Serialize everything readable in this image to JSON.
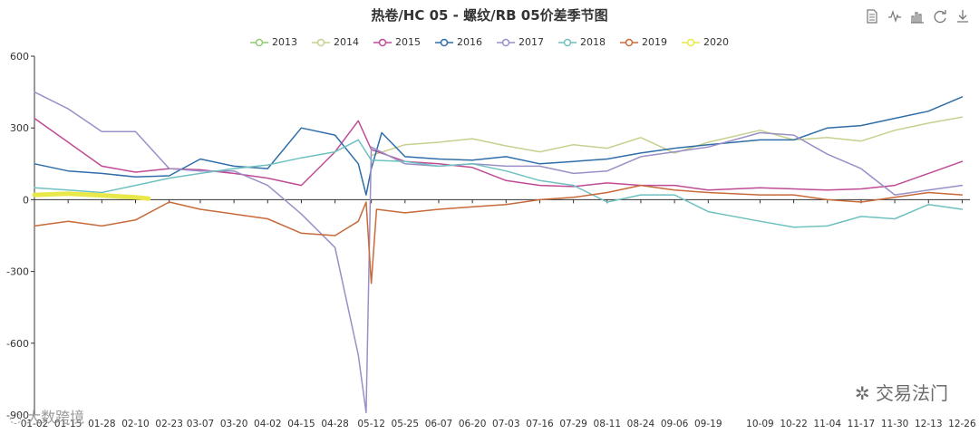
{
  "title": "热卷/HC 05 - 螺纹/RB 05价差季节图",
  "toolbar": [
    "data-view-icon",
    "line-chart-icon",
    "bar-chart-icon",
    "restore-icon",
    "download-icon"
  ],
  "watermarks": {
    "corner_logo": "交易法门",
    "corner_left": "大数跨境"
  },
  "chart_data": {
    "type": "line",
    "title": "热卷/HC 05 - 螺纹/RB 05价差季节图",
    "xlabel": "",
    "ylabel": "",
    "ylim": [
      -900,
      600
    ],
    "yticks": [
      600,
      300,
      0,
      -300,
      -600,
      -900
    ],
    "ytick_labels": [
      "600",
      "300",
      "0",
      "-300",
      "-600",
      "-900"
    ],
    "x_range": [
      "01-02",
      "12-29"
    ],
    "xtick_labels": [
      "01-02",
      "01-15",
      "01-28",
      "02-10",
      "02-23",
      "03-07",
      "03-20",
      "04-02",
      "04-15",
      "04-28",
      "05-12",
      "05-25",
      "06-07",
      "06-20",
      "07-03",
      "07-16",
      "07-29",
      "08-11",
      "08-24",
      "09-06",
      "09-19",
      "10-09",
      "10-22",
      "11-04",
      "11-17",
      "11-30",
      "12-13",
      "12-26"
    ],
    "legend_position": "top-center",
    "grid": false,
    "series": [
      {
        "name": "2013",
        "color": "#91cc75",
        "points": []
      },
      {
        "name": "2014",
        "color": "#c7d08d",
        "points": [
          [
            "05-12",
            185
          ],
          [
            "05-25",
            230
          ],
          [
            "06-07",
            240
          ],
          [
            "06-20",
            255
          ],
          [
            "07-03",
            225
          ],
          [
            "07-16",
            200
          ],
          [
            "07-29",
            230
          ],
          [
            "08-11",
            215
          ],
          [
            "08-24",
            260
          ],
          [
            "09-06",
            195
          ],
          [
            "09-19",
            240
          ],
          [
            "10-09",
            290
          ],
          [
            "10-22",
            250
          ],
          [
            "11-04",
            260
          ],
          [
            "11-17",
            245
          ],
          [
            "11-30",
            290
          ],
          [
            "12-13",
            320
          ],
          [
            "12-26",
            345
          ]
        ]
      },
      {
        "name": "2015",
        "color": "#c04b95",
        "points": [
          [
            "01-02",
            340
          ],
          [
            "01-15",
            240
          ],
          [
            "01-28",
            140
          ],
          [
            "02-10",
            115
          ],
          [
            "02-23",
            130
          ],
          [
            "03-07",
            125
          ],
          [
            "03-20",
            110
          ],
          [
            "04-02",
            90
          ],
          [
            "04-15",
            60
          ],
          [
            "04-28",
            200
          ],
          [
            "05-07",
            330
          ],
          [
            "05-12",
            210
          ],
          [
            "05-25",
            160
          ],
          [
            "06-07",
            150
          ],
          [
            "06-20",
            135
          ],
          [
            "07-03",
            80
          ],
          [
            "07-16",
            60
          ],
          [
            "07-29",
            55
          ],
          [
            "08-11",
            70
          ],
          [
            "08-24",
            60
          ],
          [
            "09-06",
            60
          ],
          [
            "09-19",
            40
          ],
          [
            "10-09",
            50
          ],
          [
            "10-22",
            45
          ],
          [
            "11-04",
            40
          ],
          [
            "11-17",
            45
          ],
          [
            "11-30",
            60
          ],
          [
            "12-13",
            110
          ],
          [
            "12-26",
            160
          ]
        ]
      },
      {
        "name": "2016",
        "color": "#2f6ea8",
        "points": [
          [
            "01-02",
            150
          ],
          [
            "01-15",
            120
          ],
          [
            "01-28",
            110
          ],
          [
            "02-10",
            95
          ],
          [
            "02-23",
            100
          ],
          [
            "03-07",
            170
          ],
          [
            "03-20",
            140
          ],
          [
            "04-02",
            130
          ],
          [
            "04-15",
            300
          ],
          [
            "04-28",
            270
          ],
          [
            "05-07",
            150
          ],
          [
            "05-10",
            20
          ],
          [
            "05-12",
            130
          ],
          [
            "05-16",
            280
          ],
          [
            "05-25",
            180
          ],
          [
            "06-07",
            170
          ],
          [
            "06-20",
            165
          ],
          [
            "07-03",
            180
          ],
          [
            "07-16",
            150
          ],
          [
            "07-29",
            160
          ],
          [
            "08-11",
            170
          ],
          [
            "08-24",
            195
          ],
          [
            "09-06",
            215
          ],
          [
            "09-19",
            230
          ],
          [
            "10-09",
            250
          ],
          [
            "10-22",
            250
          ],
          [
            "11-04",
            300
          ],
          [
            "11-17",
            310
          ],
          [
            "11-30",
            340
          ],
          [
            "12-13",
            370
          ],
          [
            "12-26",
            430
          ]
        ]
      },
      {
        "name": "2017",
        "color": "#9a8fc7",
        "points": [
          [
            "01-02",
            450
          ],
          [
            "01-15",
            380
          ],
          [
            "01-28",
            285
          ],
          [
            "02-10",
            285
          ],
          [
            "02-23",
            130
          ],
          [
            "03-07",
            120
          ],
          [
            "03-20",
            120
          ],
          [
            "04-02",
            60
          ],
          [
            "04-15",
            -60
          ],
          [
            "04-28",
            -200
          ],
          [
            "05-07",
            -650
          ],
          [
            "05-10",
            -890
          ],
          [
            "05-12",
            220
          ],
          [
            "05-25",
            150
          ],
          [
            "06-07",
            140
          ],
          [
            "06-20",
            150
          ],
          [
            "07-03",
            140
          ],
          [
            "07-16",
            140
          ],
          [
            "07-29",
            110
          ],
          [
            "08-11",
            120
          ],
          [
            "08-24",
            180
          ],
          [
            "09-06",
            200
          ],
          [
            "09-19",
            220
          ],
          [
            "10-09",
            280
          ],
          [
            "10-22",
            270
          ],
          [
            "11-04",
            190
          ],
          [
            "11-17",
            130
          ],
          [
            "11-30",
            20
          ],
          [
            "12-13",
            40
          ],
          [
            "12-26",
            60
          ]
        ]
      },
      {
        "name": "2018",
        "color": "#6fc1c0",
        "points": [
          [
            "01-02",
            50
          ],
          [
            "01-15",
            40
          ],
          [
            "01-28",
            30
          ],
          [
            "02-10",
            60
          ],
          [
            "02-23",
            90
          ],
          [
            "03-07",
            110
          ],
          [
            "03-20",
            130
          ],
          [
            "04-02",
            145
          ],
          [
            "04-15",
            175
          ],
          [
            "04-28",
            200
          ],
          [
            "05-07",
            250
          ],
          [
            "05-12",
            165
          ],
          [
            "05-25",
            160
          ],
          [
            "06-07",
            140
          ],
          [
            "06-20",
            150
          ],
          [
            "07-03",
            120
          ],
          [
            "07-16",
            80
          ],
          [
            "07-29",
            60
          ],
          [
            "08-11",
            -10
          ],
          [
            "08-24",
            20
          ],
          [
            "09-06",
            20
          ],
          [
            "09-19",
            -50
          ],
          [
            "10-09",
            -90
          ],
          [
            "10-22",
            -115
          ],
          [
            "11-04",
            -110
          ],
          [
            "11-17",
            -70
          ],
          [
            "11-30",
            -80
          ],
          [
            "12-13",
            -20
          ],
          [
            "12-26",
            -40
          ]
        ]
      },
      {
        "name": "2019",
        "color": "#c86a3a",
        "points": [
          [
            "01-02",
            -110
          ],
          [
            "01-15",
            -90
          ],
          [
            "01-28",
            -110
          ],
          [
            "02-10",
            -85
          ],
          [
            "02-23",
            -10
          ],
          [
            "03-07",
            -40
          ],
          [
            "03-20",
            -60
          ],
          [
            "04-02",
            -80
          ],
          [
            "04-15",
            -140
          ],
          [
            "04-28",
            -150
          ],
          [
            "05-07",
            -90
          ],
          [
            "05-10",
            -10
          ],
          [
            "05-12",
            -350
          ],
          [
            "05-14",
            -40
          ],
          [
            "05-25",
            -55
          ],
          [
            "06-07",
            -40
          ],
          [
            "06-20",
            -30
          ],
          [
            "07-03",
            -20
          ],
          [
            "07-16",
            0
          ],
          [
            "07-29",
            10
          ],
          [
            "08-11",
            30
          ],
          [
            "08-24",
            60
          ],
          [
            "09-06",
            40
          ],
          [
            "09-19",
            30
          ],
          [
            "10-09",
            20
          ],
          [
            "10-22",
            20
          ],
          [
            "11-04",
            0
          ],
          [
            "11-17",
            -10
          ],
          [
            "11-30",
            10
          ],
          [
            "12-13",
            30
          ],
          [
            "12-26",
            20
          ]
        ]
      },
      {
        "name": "2020",
        "color": "#e8e84a",
        "points": [
          [
            "01-02",
            20
          ],
          [
            "01-15",
            25
          ],
          [
            "01-28",
            18
          ],
          [
            "02-10",
            10
          ],
          [
            "02-15",
            5
          ]
        ]
      }
    ]
  }
}
